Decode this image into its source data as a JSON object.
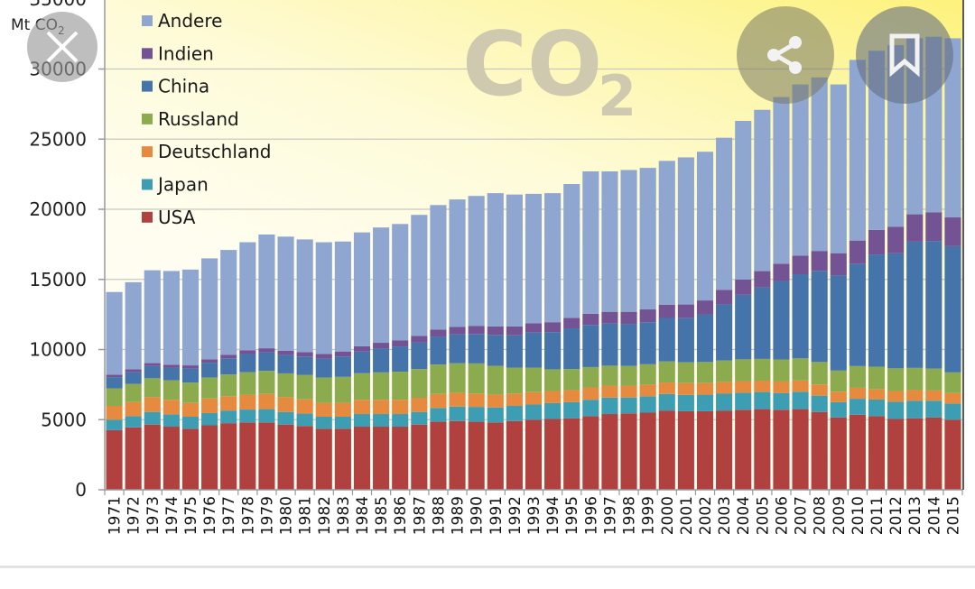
{
  "overlay": {
    "close_icon": "close-icon",
    "share_icon": "share-icon",
    "bookmark_icon": "bookmark-icon"
  },
  "chart_data": {
    "type": "bar",
    "stacked": true,
    "title": "",
    "watermark": {
      "main": "CO",
      "sub": "2"
    },
    "ylabel": {
      "main": "Mt CO",
      "sub": "2"
    },
    "xlabel": "",
    "ylim": [
      0,
      35000
    ],
    "yticks": [
      0,
      5000,
      10000,
      15000,
      20000,
      25000,
      30000,
      35000
    ],
    "ytick_labels": [
      "0",
      "5000",
      "10000",
      "15000",
      "20000",
      "25000",
      "30000",
      "35000"
    ],
    "grid": true,
    "legend_position": "top-left",
    "categories": [
      "1971",
      "1972",
      "1973",
      "1974",
      "1975",
      "1976",
      "1977",
      "1978",
      "1979",
      "1980",
      "1981",
      "1982",
      "1983",
      "1984",
      "1985",
      "1986",
      "1987",
      "1988",
      "1989",
      "1990",
      "1991",
      "1992",
      "1993",
      "1994",
      "1995",
      "1996",
      "1997",
      "1998",
      "1999",
      "2000",
      "2001",
      "2002",
      "2003",
      "2004",
      "2005",
      "2006",
      "2007",
      "2008",
      "2009",
      "2010",
      "2011",
      "2012",
      "2013",
      "2014",
      "2015"
    ],
    "series": [
      {
        "name": "USA",
        "color": "#b0413e",
        "values": [
          4250,
          4450,
          4650,
          4500,
          4350,
          4600,
          4750,
          4800,
          4800,
          4650,
          4550,
          4350,
          4350,
          4500,
          4500,
          4500,
          4650,
          4850,
          4900,
          4850,
          4800,
          4900,
          5000,
          5050,
          5100,
          5250,
          5400,
          5450,
          5500,
          5650,
          5600,
          5600,
          5650,
          5700,
          5750,
          5700,
          5750,
          5550,
          5150,
          5350,
          5250,
          5050,
          5100,
          5150,
          5000
        ]
      },
      {
        "name": "Japan",
        "color": "#3d9db3",
        "values": [
          750,
          800,
          900,
          880,
          860,
          870,
          900,
          920,
          950,
          900,
          880,
          860,
          860,
          900,
          900,
          900,
          900,
          980,
          1030,
          1060,
          1070,
          1080,
          1080,
          1130,
          1150,
          1170,
          1170,
          1130,
          1170,
          1180,
          1170,
          1180,
          1200,
          1220,
          1220,
          1200,
          1240,
          1160,
          1100,
          1140,
          1180,
          1230,
          1240,
          1200,
          1150
        ]
      },
      {
        "name": "Deutschland",
        "color": "#e58a3e",
        "values": [
          980,
          1000,
          1050,
          1030,
          980,
          1040,
          1020,
          1060,
          1080,
          1050,
          1020,
          990,
          990,
          1010,
          1020,
          1020,
          1010,
          1000,
          990,
          950,
          920,
          880,
          880,
          860,
          860,
          880,
          860,
          850,
          830,
          820,
          840,
          830,
          840,
          830,
          810,
          820,
          800,
          800,
          750,
          780,
          750,
          760,
          770,
          730,
          740
        ]
      },
      {
        "name": "Russland",
        "color": "#8cab4f",
        "values": [
          1250,
          1300,
          1350,
          1400,
          1450,
          1500,
          1550,
          1600,
          1650,
          1700,
          1750,
          1800,
          1850,
          1900,
          1950,
          2000,
          2050,
          2100,
          2100,
          2150,
          2050,
          1850,
          1750,
          1550,
          1500,
          1450,
          1420,
          1400,
          1450,
          1500,
          1480,
          1500,
          1530,
          1550,
          1550,
          1570,
          1580,
          1600,
          1500,
          1550,
          1600,
          1620,
          1580,
          1560,
          1480
        ]
      },
      {
        "name": "China",
        "color": "#4474aa",
        "values": [
          800,
          850,
          880,
          900,
          1000,
          1050,
          1150,
          1300,
          1320,
          1320,
          1300,
          1350,
          1450,
          1550,
          1700,
          1800,
          1900,
          2000,
          2050,
          2100,
          2200,
          2300,
          2500,
          2650,
          2900,
          3000,
          3000,
          3000,
          3000,
          3100,
          3150,
          3400,
          4000,
          4600,
          5100,
          5600,
          6000,
          6500,
          6800,
          7300,
          8000,
          8200,
          9000,
          9100,
          9000
        ]
      },
      {
        "name": "Indien",
        "color": "#745394",
        "values": [
          180,
          190,
          200,
          210,
          230,
          240,
          260,
          270,
          290,
          300,
          320,
          340,
          360,
          380,
          410,
          440,
          470,
          500,
          540,
          580,
          610,
          640,
          670,
          710,
          750,
          800,
          840,
          860,
          910,
          950,
          970,
          990,
          1040,
          1090,
          1160,
          1230,
          1330,
          1420,
          1570,
          1650,
          1750,
          1900,
          1950,
          2050,
          2050
        ]
      },
      {
        "name": "Andere",
        "color": "#8ea6d0",
        "values": [
          5890,
          6210,
          6620,
          6680,
          6830,
          7200,
          7470,
          7700,
          8110,
          8130,
          8030,
          7960,
          7840,
          8110,
          8220,
          8290,
          8620,
          8870,
          9090,
          9260,
          9500,
          9400,
          9220,
          9200,
          9540,
          10150,
          10010,
          10110,
          10090,
          10250,
          10490,
          10600,
          10840,
          11310,
          11500,
          11880,
          12200,
          12370,
          12030,
          12880,
          12770,
          12940,
          12560,
          12510,
          12770
        ]
      }
    ],
    "legend_order": [
      "Andere",
      "Indien",
      "China",
      "Russland",
      "Deutschland",
      "Japan",
      "USA"
    ]
  }
}
